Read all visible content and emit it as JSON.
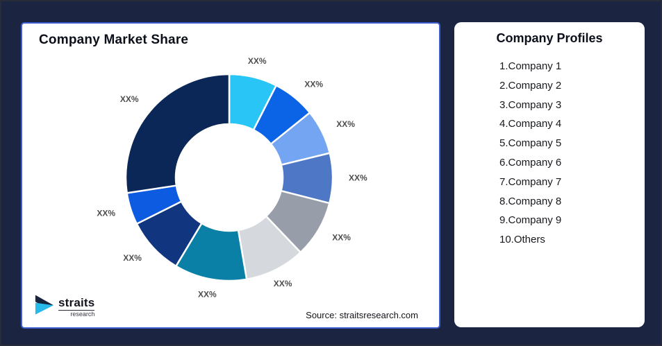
{
  "chart": {
    "title": "Company Market Share",
    "source": "Source: straitsresearch.com"
  },
  "chart_data": {
    "type": "pie",
    "subtype": "donut",
    "title": "Company Market Share",
    "note": "All slice data labels are XX% placeholders; slice sizes below are visual estimates in percent of the full ring, clockwise from 12 o'clock.",
    "legend_position": "none",
    "segments": [
      {
        "label": "XX%",
        "value": 7.5,
        "color": "#29C5F6"
      },
      {
        "label": "XX%",
        "value": 6.7,
        "color": "#0B63E6"
      },
      {
        "label": "XX%",
        "value": 7.0,
        "color": "#74A5F3"
      },
      {
        "label": "XX%",
        "value": 7.8,
        "color": "#4E78C6"
      },
      {
        "label": "XX%",
        "value": 8.9,
        "color": "#979DA9"
      },
      {
        "label": "XX%",
        "value": 9.4,
        "color": "#D5D8DD"
      },
      {
        "label": "XX%",
        "value": 11.3,
        "color": "#0A80A6"
      },
      {
        "label": "XX%",
        "value": 9.0,
        "color": "#12357F"
      },
      {
        "label": "XX%",
        "value": 5.0,
        "color": "#0D5BE1"
      },
      {
        "label": "XX%",
        "value": 27.4,
        "color": "#0B2757"
      }
    ]
  },
  "profiles": {
    "title": "Company Profiles",
    "items": [
      "1.Company 1",
      "2.Company 2",
      "3.Company 3",
      "4.Company 4",
      "5.Company 5",
      "6.Company 6",
      "7.Company 7",
      "8.Company 8",
      "9.Company 9",
      "10.Others"
    ]
  },
  "logo": {
    "name": "straits",
    "sub": "research",
    "mark_navy": "#16243D",
    "mark_cyan": "#29B9EA"
  },
  "colors": {
    "frame_background": "#1B2441",
    "card_border_blue": "#3C5ECF",
    "label_gray": "#4D4D4D",
    "slice_divider": "#FFFFFF"
  }
}
